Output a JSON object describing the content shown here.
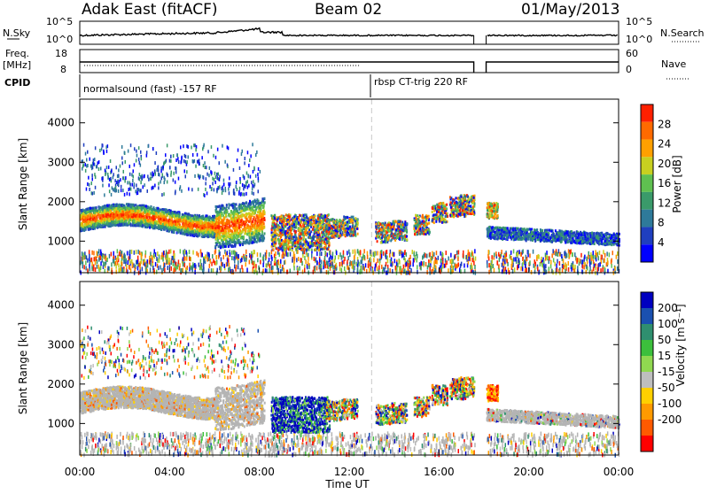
{
  "header": {
    "station": "Adak East (fitACF)",
    "beam": "Beam 02",
    "date": "01/May/2013"
  },
  "side_labels": {
    "nsky": "N.Sky",
    "freq": "Freq.",
    "freq_unit": "[MHz]",
    "cpid": "CPID",
    "nsearch": "N.Search",
    "nave": "Nave"
  },
  "strips": {
    "noise_left_ticks": [
      "10^5",
      "10^0"
    ],
    "noise_right_ticks": [
      "10^5",
      "10^0"
    ],
    "freq_left_ticks": [
      "18",
      "8"
    ],
    "freq_right_ticks": [
      "60",
      "0"
    ],
    "cpid_segments": [
      "normalsound (fast) -157 RF",
      "rbsp CT-trig 220 RF"
    ]
  },
  "colors": {
    "power_scale": [
      "#0000ff",
      "#1f3fbf",
      "#2e7a9a",
      "#3a9a6a",
      "#5fc050",
      "#c8d020",
      "#ffa000",
      "#ff6a00",
      "#ff2000"
    ],
    "velocity_scale": [
      "#0000c0",
      "#1a50b0",
      "#2f8f6f",
      "#3cbf3c",
      "#90d850",
      "#bebebe",
      "#ffd000",
      "#ff9a00",
      "#ff5a00",
      "#ff0000"
    ],
    "ground_scatter": "#b4b4b4"
  },
  "chart_data": [
    {
      "type": "heatmap",
      "panel": "power",
      "ylabel": "Slant Range [km]",
      "yticks": [
        "1000",
        "2000",
        "3000",
        "4000"
      ],
      "ylim": [
        200,
        4600
      ],
      "colorbar_label": "Power [dB]",
      "colorbar_ticks": [
        "4",
        "8",
        "12",
        "16",
        "20",
        "24",
        "28"
      ]
    },
    {
      "type": "heatmap",
      "panel": "velocity",
      "ylabel": "Slant Range [km]",
      "yticks": [
        "1000",
        "2000",
        "3000",
        "4000"
      ],
      "ylim": [
        200,
        4600
      ],
      "colorbar_label": "Velocity [m s⁻¹]",
      "colorbar_ticks": [
        "200",
        "100",
        "50",
        "15",
        "-15",
        "-50",
        "-100",
        "-200"
      ]
    }
  ],
  "xaxis": {
    "label": "Time UT",
    "ticks": [
      "00:00",
      "04:00",
      "08:00",
      "12:00",
      "16:00",
      "20:00",
      "00:00"
    ]
  }
}
